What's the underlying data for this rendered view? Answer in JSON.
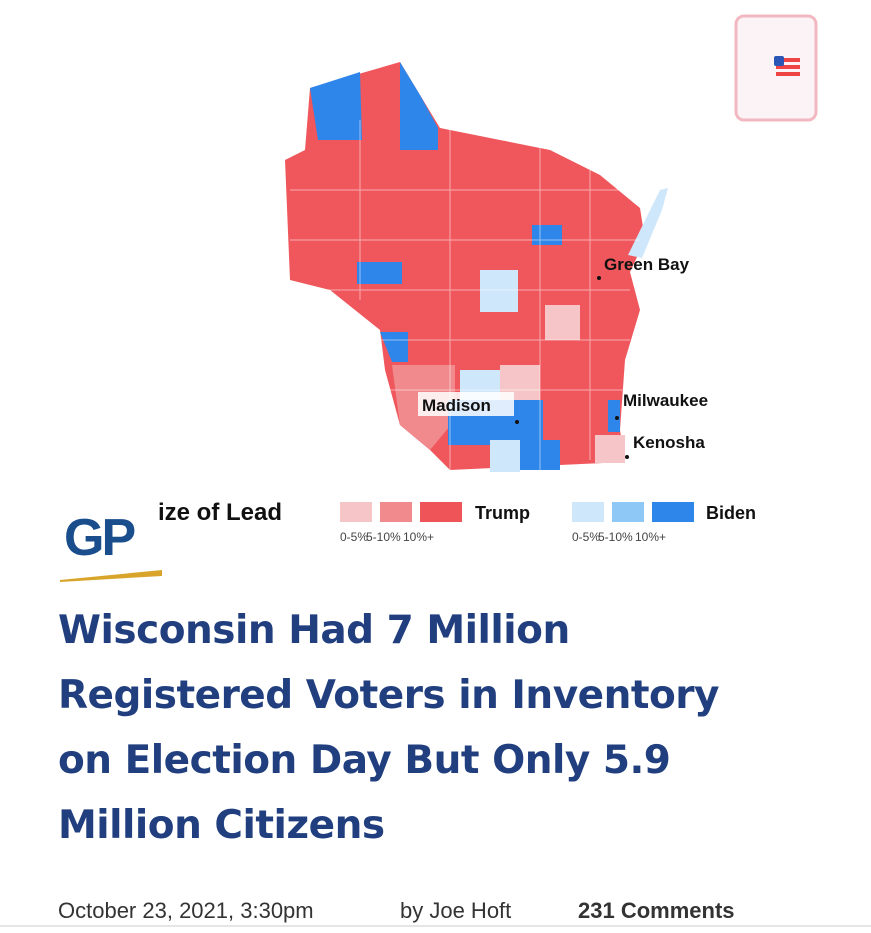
{
  "map": {
    "cities": [
      "Green Bay",
      "Madison",
      "Milwaukee",
      "Kenosha"
    ],
    "legend": {
      "title": "ize of Lead",
      "trump": "Trump",
      "biden": "Biden",
      "trump_ranges": [
        "0-5%",
        "5-10%",
        "10%+"
      ],
      "biden_ranges": [
        "0-5%",
        "5-10%",
        "10%+"
      ]
    }
  },
  "logo": "GP",
  "article": {
    "title_lines": [
      "Wisconsin Had 7 Million",
      "Registered Voters in Inventory",
      "on Election Day But Only 5.9",
      "Million Citizens"
    ],
    "date": "October 23, 2021, 3:30pm",
    "author": "by Joe Hoft",
    "comments": "231 Comments"
  }
}
